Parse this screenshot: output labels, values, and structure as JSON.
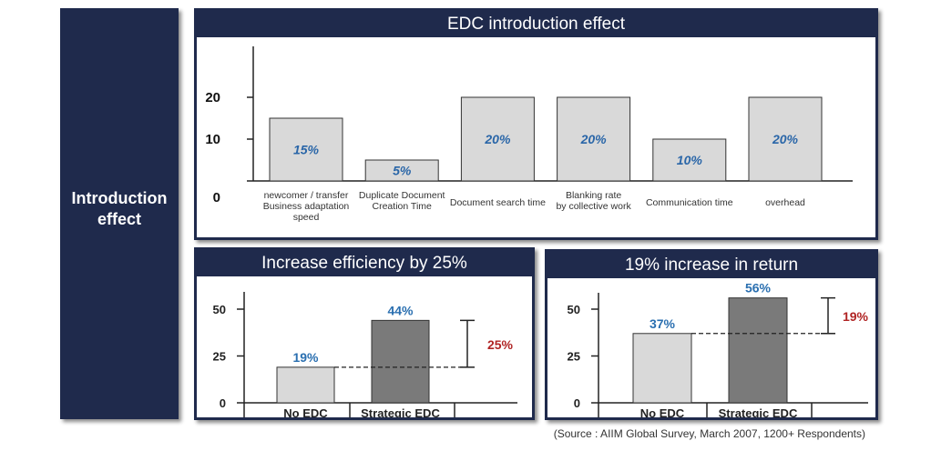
{
  "side_label": "Introduction\neffect",
  "source": "(Source : AIIM Global Survey, March 2007, 1200+ Respondents)",
  "colors": {
    "navy": "#1f2a4c",
    "light_bar": "#d9d9d9",
    "dark_bar": "#7a7a7a",
    "label_blue": "#2a66a8",
    "diff_red": "#b02424"
  },
  "chart_data": [
    {
      "type": "bar",
      "title": "EDC introduction effect",
      "categories": [
        [
          "newcomer / transfer",
          "Business adaptation",
          "speed"
        ],
        [
          "Duplicate Document",
          "Creation Time"
        ],
        [
          "Document search time"
        ],
        [
          "Blanking rate",
          "by collective work"
        ],
        [
          "Communication time"
        ],
        [
          "overhead"
        ]
      ],
      "values": [
        15,
        5,
        20,
        20,
        10,
        20
      ],
      "data_labels": [
        "15%",
        "5%",
        "20%",
        "20%",
        "10%",
        "20%"
      ],
      "y_ticks": [
        0,
        10,
        20
      ],
      "ylim": [
        0,
        25
      ]
    },
    {
      "type": "bar",
      "title": "Increase efficiency by 25%",
      "categories": [
        "No EDC",
        "Strategic EDC"
      ],
      "values": [
        19,
        44
      ],
      "data_labels": [
        "19%",
        "44%"
      ],
      "difference_label": "25%",
      "y_ticks": [
        0,
        25,
        50
      ],
      "ylim": [
        0,
        50
      ]
    },
    {
      "type": "bar",
      "title": "19% increase in return",
      "categories": [
        "No EDC",
        "Strategic EDC"
      ],
      "values": [
        37,
        56
      ],
      "data_labels": [
        "37%",
        "56%"
      ],
      "difference_label": "19%",
      "y_ticks": [
        0,
        25,
        50
      ],
      "ylim": [
        0,
        50
      ]
    }
  ]
}
